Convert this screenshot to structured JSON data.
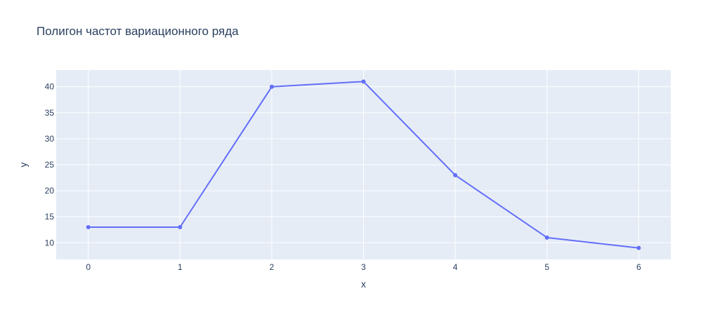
{
  "chart_data": {
    "type": "line",
    "title": "Полигон частот вариационного ряда",
    "xlabel": "x",
    "ylabel": "y",
    "x": [
      0,
      1,
      2,
      3,
      4,
      5,
      6
    ],
    "series": [
      {
        "values": [
          13,
          13,
          40,
          41,
          23,
          11,
          9
        ]
      }
    ],
    "xlim": [
      -0.35,
      6.35
    ],
    "ylim": [
      6.8,
      43.2
    ],
    "x_ticks": [
      "0",
      "1",
      "2",
      "3",
      "4",
      "5",
      "6"
    ],
    "y_ticks": [
      "10",
      "15",
      "20",
      "25",
      "30",
      "35",
      "40"
    ],
    "grid": true,
    "legend": "none",
    "colors": {
      "line": "#636efa",
      "plot_bg": "#e5ecf6",
      "grid": "#ffffff",
      "text": "#2a3f5f"
    }
  }
}
